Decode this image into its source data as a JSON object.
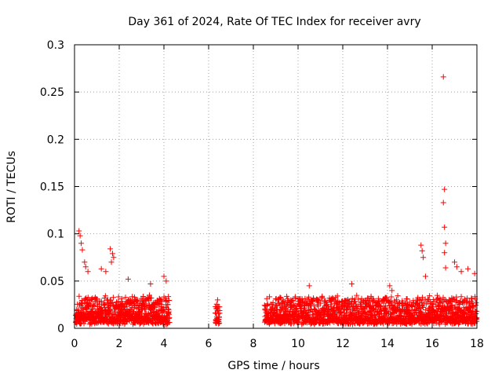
{
  "chart_data": {
    "type": "scatter",
    "title": "Day 361 of 2024, Rate Of TEC Index for receiver avry",
    "xlabel": "GPS time / hours",
    "ylabel": "ROTI / TECUs",
    "xlim": [
      0,
      18
    ],
    "ylim": [
      0,
      0.3
    ],
    "grid": true,
    "marker": "+",
    "color": "#ff0000",
    "x_ticks": [
      0,
      2,
      4,
      6,
      8,
      10,
      12,
      14,
      16,
      18
    ],
    "x_tick_labels": [
      "0",
      "2",
      "4",
      "6",
      "8",
      "10",
      "12",
      "14",
      "16",
      "18"
    ],
    "y_ticks": [
      0,
      0.05,
      0.1,
      0.15,
      0.2,
      0.25,
      0.3
    ],
    "y_tick_labels": [
      "0",
      "0.05",
      "0.1",
      "0.15",
      "0.2",
      "0.25",
      "0.3"
    ],
    "segments": [
      {
        "start": 0.05,
        "end": 4.25,
        "baseline": 0.015,
        "spread": 0.025
      },
      {
        "start": 6.3,
        "end": 6.5,
        "baseline": 0.01,
        "spread": 0.02
      },
      {
        "start": 8.5,
        "end": 18.0,
        "baseline": 0.015,
        "spread": 0.025
      }
    ],
    "notable_points": [
      {
        "x": 0.2,
        "y": 0.103
      },
      {
        "x": 0.25,
        "y": 0.098
      },
      {
        "x": 0.3,
        "y": 0.09
      },
      {
        "x": 0.35,
        "y": 0.083
      },
      {
        "x": 0.45,
        "y": 0.07
      },
      {
        "x": 0.5,
        "y": 0.065
      },
      {
        "x": 0.6,
        "y": 0.06
      },
      {
        "x": 1.2,
        "y": 0.063
      },
      {
        "x": 1.4,
        "y": 0.06
      },
      {
        "x": 1.6,
        "y": 0.084
      },
      {
        "x": 1.7,
        "y": 0.079
      },
      {
        "x": 1.75,
        "y": 0.075
      },
      {
        "x": 1.65,
        "y": 0.07
      },
      {
        "x": 2.4,
        "y": 0.052
      },
      {
        "x": 3.4,
        "y": 0.047
      },
      {
        "x": 3.35,
        "y": 0.035
      },
      {
        "x": 4.0,
        "y": 0.055
      },
      {
        "x": 4.1,
        "y": 0.05
      },
      {
        "x": 6.4,
        "y": 0.03
      },
      {
        "x": 10.5,
        "y": 0.045
      },
      {
        "x": 12.4,
        "y": 0.047
      },
      {
        "x": 14.1,
        "y": 0.045
      },
      {
        "x": 14.2,
        "y": 0.04
      },
      {
        "x": 15.5,
        "y": 0.088
      },
      {
        "x": 15.55,
        "y": 0.082
      },
      {
        "x": 15.6,
        "y": 0.075
      },
      {
        "x": 15.7,
        "y": 0.055
      },
      {
        "x": 16.5,
        "y": 0.266
      },
      {
        "x": 16.55,
        "y": 0.147
      },
      {
        "x": 16.5,
        "y": 0.133
      },
      {
        "x": 16.55,
        "y": 0.107
      },
      {
        "x": 16.6,
        "y": 0.09
      },
      {
        "x": 16.55,
        "y": 0.08
      },
      {
        "x": 16.6,
        "y": 0.064
      },
      {
        "x": 17.0,
        "y": 0.07
      },
      {
        "x": 17.1,
        "y": 0.065
      },
      {
        "x": 17.3,
        "y": 0.06
      },
      {
        "x": 17.6,
        "y": 0.063
      },
      {
        "x": 17.9,
        "y": 0.058
      }
    ]
  }
}
